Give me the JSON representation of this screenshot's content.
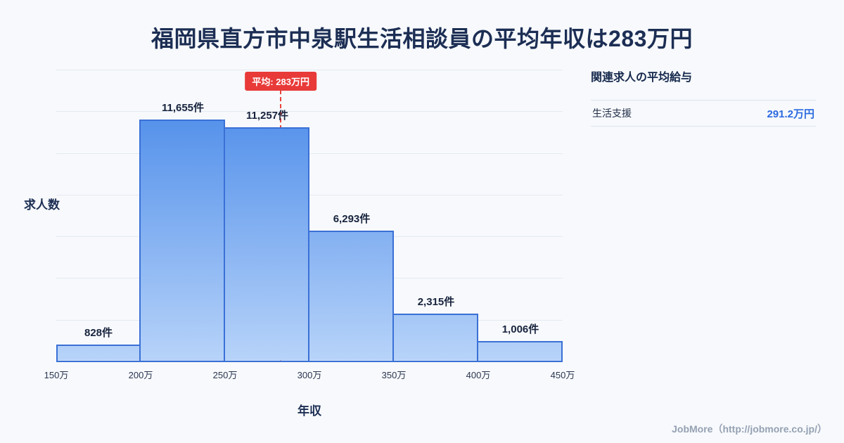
{
  "title": "福岡県直方市中泉駅生活相談員の平均年収は283万円",
  "chart_data": {
    "type": "bar",
    "title": "福岡県直方市中泉駅生活相談員の平均年収は283万円",
    "xlabel": "年収",
    "ylabel": "求人数",
    "categories": [
      "150万",
      "200万",
      "250万",
      "300万",
      "350万",
      "400万",
      "450万"
    ],
    "values": [
      828,
      11655,
      11257,
      6293,
      2315,
      1006
    ],
    "bar_labels": [
      "828件",
      "11,655件",
      "11,257件",
      "6,293件",
      "2,315件",
      "1,006件"
    ],
    "bins": [
      {
        "from": 150,
        "to": 200,
        "count": 828
      },
      {
        "from": 200,
        "to": 250,
        "count": 11655
      },
      {
        "from": 250,
        "to": 300,
        "count": 11257
      },
      {
        "from": 300,
        "to": 350,
        "count": 6293
      },
      {
        "from": 350,
        "to": 400,
        "count": 2315
      },
      {
        "from": 400,
        "to": 450,
        "count": 1006
      }
    ],
    "ylim": [
      0,
      14000
    ],
    "grid": true,
    "gridline_step": 2000,
    "mean_line": {
      "label": "平均: 283万円",
      "x_value": 283,
      "x_min": 150,
      "x_max": 450,
      "color": "#e8453d"
    },
    "colors": {
      "bar_gradient_top": "#4285e8",
      "bar_gradient_bottom": "#b7d3f9",
      "bar_border": "#3a70d6"
    }
  },
  "side_panel": {
    "heading": "関連求人の平均給与",
    "rows": [
      {
        "label": "生活支援",
        "value": "291.2万円"
      }
    ],
    "value_color": "#2b6ae0"
  },
  "footer": {
    "credit": "JobMore（http://jobmore.co.jp/）"
  }
}
